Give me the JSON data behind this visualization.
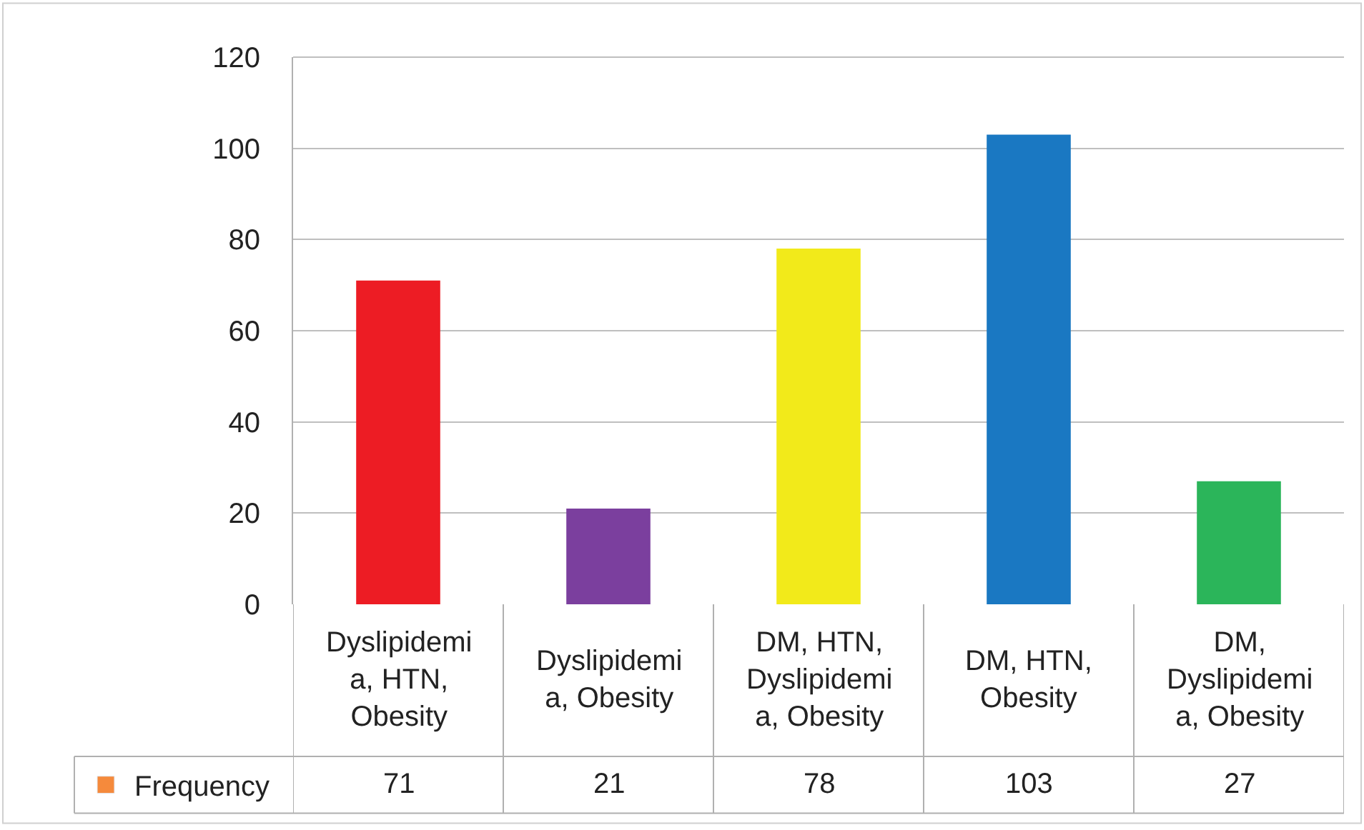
{
  "chart_data": {
    "type": "bar",
    "categories": [
      "Dyslipidemia, HTN, Obesity",
      "Dyslipidemia, Obesity",
      "DM, HTN, Dyslipidemia, Obesity",
      "DM, HTN, Obesity",
      "DM, Dyslipidemia, Obesity"
    ],
    "series": [
      {
        "name": "Frequency",
        "color": "#f58a3c",
        "colors": [
          "#ed1c24",
          "#7b3f9e",
          "#f2ea1a",
          "#1a78c2",
          "#2bb55a"
        ],
        "values": [
          71,
          21,
          78,
          103,
          27
        ]
      }
    ],
    "ylim": [
      0,
      120
    ],
    "yticks": [
      0,
      20,
      40,
      60,
      80,
      100,
      120
    ],
    "grid": "y",
    "data_labels": true,
    "legend": "bottom left"
  }
}
